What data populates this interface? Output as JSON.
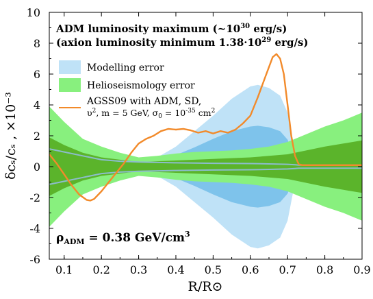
{
  "chart_data": {
    "type": "area",
    "xlim": [
      0.06,
      0.9
    ],
    "ylim": [
      -6,
      10
    ],
    "x_ticks": [
      0.1,
      0.2,
      0.3,
      0.4,
      0.5,
      0.6,
      0.7,
      0.8,
      0.9
    ],
    "x_tick_labels": [
      "0.1",
      "0.2",
      "0.3",
      "0.4",
      "0.5",
      "0.6",
      "0.7",
      "0.8",
      "0.9"
    ],
    "y_ticks": [
      -6,
      -4,
      -2,
      0,
      2,
      4,
      6,
      8,
      10
    ],
    "y_tick_labels": [
      "-6",
      "-4",
      "-2",
      "0",
      "2",
      "4",
      "6",
      "8",
      "10"
    ],
    "xlabel": "R/R⊙",
    "ylabel": "δcₛ/cₛ , ×10⁻³",
    "annotation_line1_pre": "ADM luminosity maximum (~10",
    "annotation_line1_sup": "30",
    "annotation_line1_post": " erg/s)",
    "annotation_line2": "(axion luminosity minimum 1.38·10",
    "annotation_line2_sup": "29",
    "annotation_line2_post": " erg/s)",
    "rho_label": "ρ",
    "rho_sub": "ADM",
    "rho_value": " = 0.38 GeV/cm",
    "rho_sup": "3",
    "legend": {
      "modelling": "Modelling error",
      "helio": "Helioseismology error",
      "line_l1": "AGSS09 with ADM, SD,",
      "line_l2_a": "υ",
      "line_l2_sup": "2",
      "line_l2_b": ", m = 5 GeV, σ",
      "line_l2_sub": "0",
      "line_l2_c": " = 10",
      "line_l2_sup2": "-35",
      "line_l2_d": " cm",
      "line_l2_sup3": "2"
    },
    "colors": {
      "modelling_outer": "#bfe2f7",
      "modelling_inner": "#7ec3eb",
      "helio_outer": "#88f07e",
      "helio_inner": "#5bb42b",
      "orange": "#f28a2a",
      "grey_line": "#8cbccc"
    },
    "series": [
      {
        "name": "Modelling error",
        "kind": "band",
        "x": [
          0.06,
          0.1,
          0.15,
          0.2,
          0.25,
          0.3,
          0.35,
          0.4,
          0.45,
          0.5,
          0.55,
          0.6,
          0.62,
          0.65,
          0.68,
          0.7,
          0.72,
          0.73,
          0.75,
          0.8,
          0.85,
          0.9
        ],
        "upper": [
          1.1,
          0.9,
          0.6,
          0.35,
          0.25,
          0.3,
          0.6,
          1.3,
          2.3,
          3.3,
          4.4,
          5.2,
          5.3,
          5.1,
          4.6,
          3.5,
          1.0,
          0.15,
          0.12,
          0.12,
          0.12,
          0.12
        ],
        "lower": [
          -1.1,
          -0.9,
          -0.6,
          -0.35,
          -0.25,
          -0.3,
          -0.6,
          -1.3,
          -2.3,
          -3.3,
          -4.4,
          -5.2,
          -5.3,
          -5.1,
          -4.6,
          -3.5,
          -1.0,
          -0.15,
          -0.12,
          -0.12,
          -0.12,
          -0.12
        ]
      },
      {
        "name": "Modelling error (inner)",
        "kind": "band",
        "x": [
          0.06,
          0.1,
          0.2,
          0.3,
          0.35,
          0.4,
          0.45,
          0.5,
          0.55,
          0.6,
          0.62,
          0.65,
          0.68,
          0.7,
          0.72,
          0.73,
          0.9
        ],
        "upper": [
          0.7,
          0.55,
          0.25,
          0.2,
          0.35,
          0.75,
          1.25,
          1.8,
          2.3,
          2.6,
          2.65,
          2.55,
          2.3,
          1.75,
          0.5,
          0.08,
          0.08
        ],
        "lower": [
          -0.7,
          -0.55,
          -0.25,
          -0.2,
          -0.35,
          -0.75,
          -1.25,
          -1.8,
          -2.3,
          -2.6,
          -2.65,
          -2.55,
          -2.3,
          -1.75,
          -0.5,
          -0.08,
          -0.08
        ]
      },
      {
        "name": "Helioseismology error",
        "kind": "band",
        "x": [
          0.06,
          0.1,
          0.15,
          0.2,
          0.25,
          0.3,
          0.35,
          0.4,
          0.45,
          0.5,
          0.55,
          0.6,
          0.65,
          0.7,
          0.75,
          0.8,
          0.85,
          0.9
        ],
        "upper": [
          3.9,
          2.9,
          1.8,
          1.3,
          0.9,
          0.6,
          0.7,
          0.85,
          0.95,
          1.0,
          1.05,
          1.15,
          1.3,
          1.6,
          2.1,
          2.6,
          3.0,
          3.5
        ],
        "lower": [
          -3.9,
          -2.9,
          -1.8,
          -1.3,
          -0.9,
          -0.6,
          -0.7,
          -0.85,
          -0.95,
          -1.0,
          -1.05,
          -1.15,
          -1.3,
          -1.6,
          -2.1,
          -2.6,
          -3.0,
          -3.5
        ]
      },
      {
        "name": "Helioseismology error (inner)",
        "kind": "band",
        "x": [
          0.06,
          0.1,
          0.15,
          0.2,
          0.25,
          0.3,
          0.35,
          0.4,
          0.45,
          0.5,
          0.55,
          0.6,
          0.65,
          0.7,
          0.75,
          0.8,
          0.85,
          0.9
        ],
        "upper": [
          1.9,
          1.4,
          0.9,
          0.6,
          0.45,
          0.3,
          0.35,
          0.4,
          0.45,
          0.5,
          0.55,
          0.6,
          0.7,
          0.8,
          1.05,
          1.3,
          1.5,
          1.7
        ],
        "lower": [
          -1.9,
          -1.4,
          -0.9,
          -0.6,
          -0.45,
          -0.3,
          -0.35,
          -0.4,
          -0.45,
          -0.5,
          -0.55,
          -0.6,
          -0.7,
          -0.8,
          -1.05,
          -1.3,
          -1.5,
          -1.7
        ]
      },
      {
        "name": "AGSS09 with ADM, SD, υ², m = 5 GeV, σ₀ = 10⁻³⁵ cm²",
        "kind": "line",
        "x": [
          0.06,
          0.08,
          0.1,
          0.12,
          0.14,
          0.16,
          0.17,
          0.18,
          0.2,
          0.22,
          0.24,
          0.26,
          0.28,
          0.3,
          0.32,
          0.34,
          0.36,
          0.38,
          0.4,
          0.42,
          0.44,
          0.46,
          0.48,
          0.5,
          0.52,
          0.54,
          0.56,
          0.58,
          0.6,
          0.62,
          0.64,
          0.66,
          0.67,
          0.68,
          0.69,
          0.7,
          0.71,
          0.72,
          0.73,
          0.74,
          0.76,
          0.8,
          0.85,
          0.9
        ],
        "y": [
          0.8,
          0.2,
          -0.5,
          -1.2,
          -1.8,
          -2.15,
          -2.2,
          -2.1,
          -1.6,
          -1.0,
          -0.4,
          0.2,
          0.9,
          1.5,
          1.8,
          2.0,
          2.3,
          2.45,
          2.4,
          2.45,
          2.35,
          2.2,
          2.3,
          2.15,
          2.3,
          2.2,
          2.4,
          2.8,
          3.3,
          4.5,
          5.8,
          7.1,
          7.3,
          7.0,
          6.0,
          4.0,
          2.0,
          0.7,
          0.15,
          0.1,
          0.1,
          0.1,
          0.1,
          0.1
        ]
      },
      {
        "name": "Model edge upper",
        "kind": "thin-line",
        "x": [
          0.06,
          0.1,
          0.15,
          0.2,
          0.25,
          0.3,
          0.4,
          0.5,
          0.6,
          0.65,
          0.7,
          0.72,
          0.73,
          0.75,
          0.9
        ],
        "y": [
          1.15,
          0.95,
          0.7,
          0.45,
          0.35,
          0.3,
          0.25,
          0.22,
          0.2,
          0.18,
          0.15,
          0.12,
          0.1,
          0.1,
          0.1
        ]
      },
      {
        "name": "Model edge lower",
        "kind": "thin-line",
        "x": [
          0.06,
          0.1,
          0.15,
          0.2,
          0.25,
          0.3,
          0.4,
          0.5,
          0.6,
          0.65,
          0.7,
          0.72,
          0.73,
          0.75,
          0.9
        ],
        "y": [
          -1.15,
          -0.95,
          -0.7,
          -0.45,
          -0.35,
          -0.3,
          -0.25,
          -0.22,
          -0.2,
          -0.18,
          -0.15,
          -0.12,
          -0.1,
          -0.1,
          -0.1
        ]
      }
    ]
  }
}
